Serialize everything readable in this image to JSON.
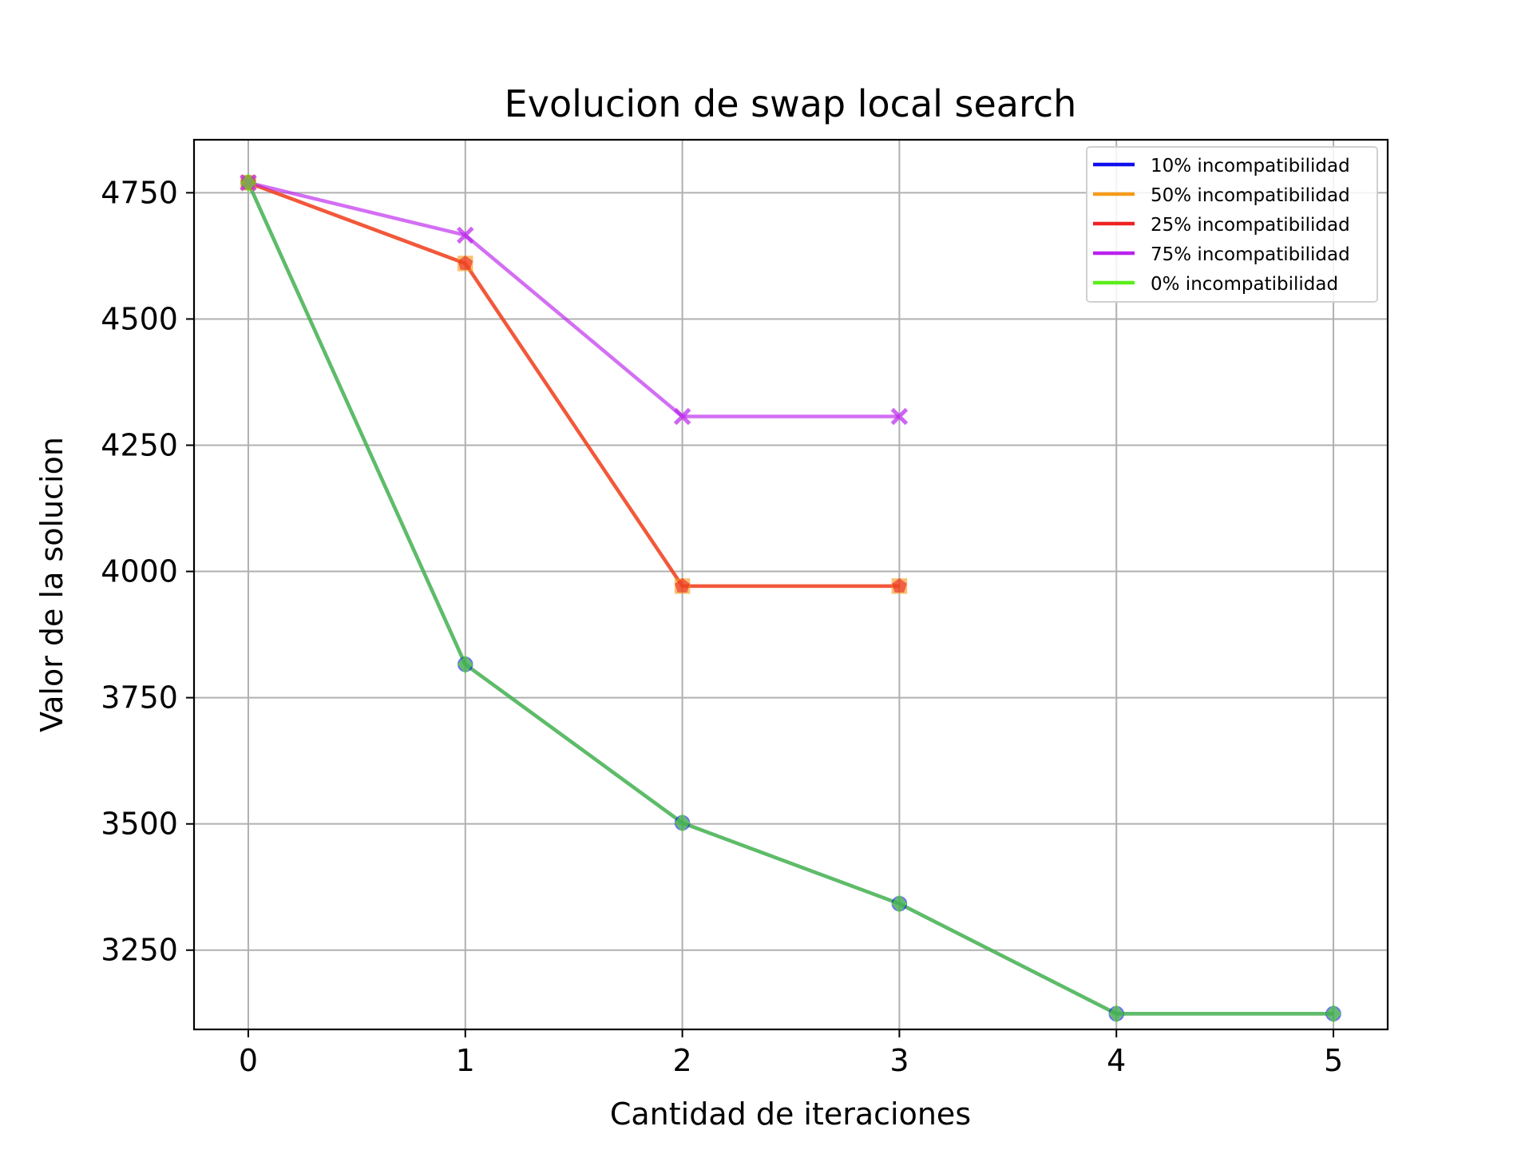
{
  "chart_data": {
    "type": "line",
    "title": "Evolucion de swap local search",
    "xlabel": "Cantidad de iteraciones",
    "ylabel": "Valor de la solucion",
    "xlim": [
      -0.25,
      5.25
    ],
    "ylim": [
      3093,
      4855
    ],
    "xticks": [
      0,
      1,
      2,
      3,
      4,
      5
    ],
    "yticks": [
      3250,
      3500,
      3750,
      4000,
      4250,
      4500,
      4750
    ],
    "grid": true,
    "legend_position": "top-right",
    "series": [
      {
        "name": "10% incompatibilidad",
        "color": "#1010ee",
        "marker": "circle",
        "x": [
          0,
          1,
          2,
          3,
          4,
          5
        ],
        "y": [
          4770,
          3816,
          3502,
          3342,
          3124,
          3124
        ]
      },
      {
        "name": "50% incompatibilidad",
        "color": "#f59a1a",
        "marker": "square",
        "x": [
          0,
          1,
          2,
          3
        ],
        "y": [
          4770,
          4610,
          3971,
          3971
        ]
      },
      {
        "name": "25% incompatibilidad",
        "color": "#ee2222",
        "marker": "pentagon",
        "x": [
          0,
          1,
          2,
          3
        ],
        "y": [
          4770,
          4610,
          3971,
          3971
        ]
      },
      {
        "name": "75% incompatibilidad",
        "color": "#bb22ee",
        "marker": "x",
        "x": [
          0,
          1,
          2,
          3
        ],
        "y": [
          4770,
          4666,
          4307,
          4307
        ]
      },
      {
        "name": "0% incompatibilidad",
        "color": "#5aee1a",
        "marker": "diamond",
        "x": [
          0,
          1,
          2,
          3,
          4,
          5
        ],
        "y": [
          4770,
          3816,
          3502,
          3342,
          3124,
          3124
        ]
      }
    ]
  }
}
